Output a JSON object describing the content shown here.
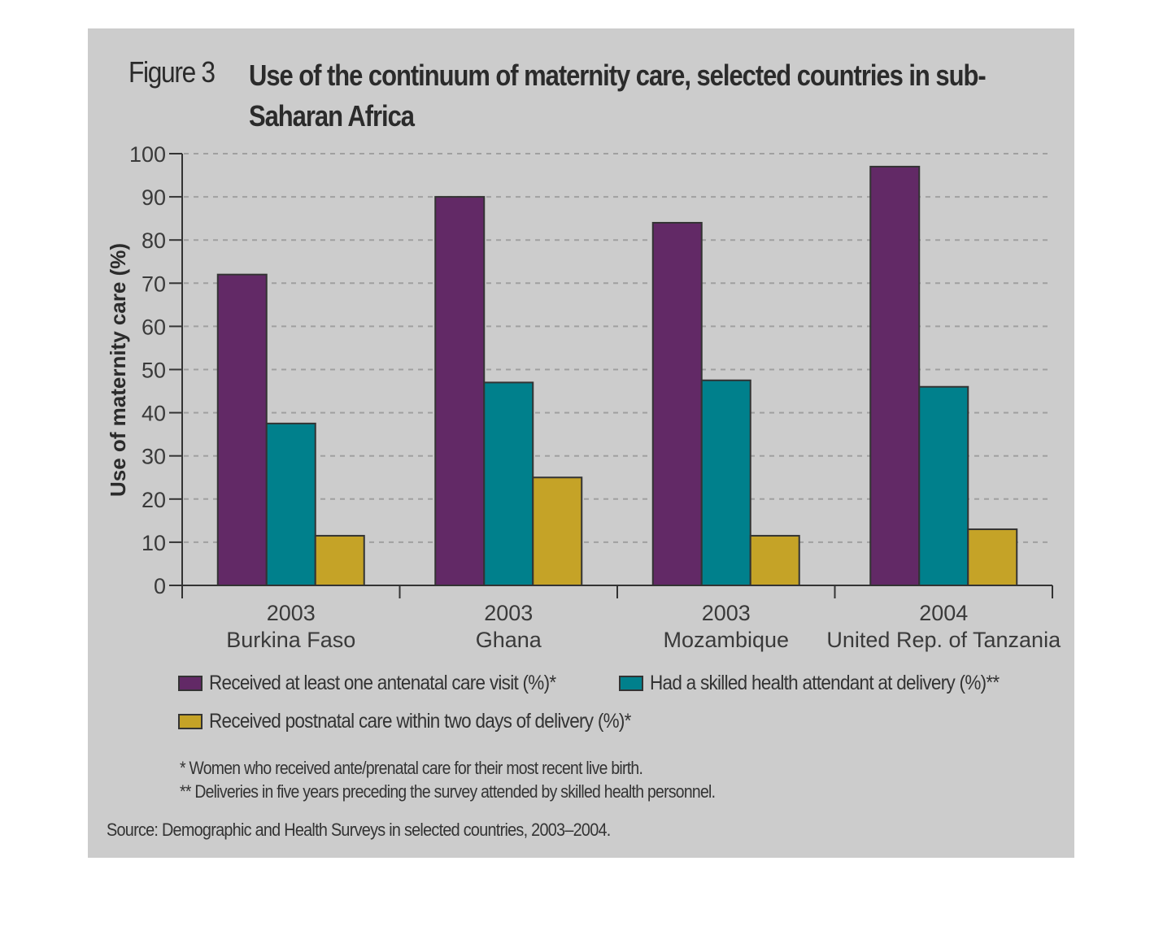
{
  "figure": {
    "number_label": "Figure 3",
    "title": "Use of the continuum of maternity care, selected countries in sub-Saharan Africa"
  },
  "notes": [
    "* Women who received ante/prenatal care for their most recent live birth.",
    "** Deliveries in five years preceding the survey attended by skilled health personnel."
  ],
  "source": "Source: Demographic and Health Surveys in selected countries, 2003–2004.",
  "chart_data": {
    "type": "bar",
    "title": "Use of the continuum of maternity care, selected countries in sub-Saharan Africa",
    "xlabel": "",
    "ylabel": "Use of maternity care (%)",
    "ylim": [
      0,
      100
    ],
    "yticks": [
      0,
      10,
      20,
      30,
      40,
      50,
      60,
      70,
      80,
      90,
      100
    ],
    "grid": true,
    "legend_position": "bottom",
    "categories": [
      {
        "year": "2003",
        "country": "Burkina Faso"
      },
      {
        "year": "2003",
        "country": "Ghana"
      },
      {
        "year": "2003",
        "country": "Mozambique"
      },
      {
        "year": "2004",
        "country": "United Rep. of Tanzania"
      }
    ],
    "series": [
      {
        "name": "Received at least one antenatal care visit (%)*",
        "color": "#622966",
        "values": [
          72,
          90,
          84,
          97
        ]
      },
      {
        "name": "Had a skilled health attendant at delivery (%)**",
        "color": "#00808c",
        "values": [
          37.5,
          47,
          47.5,
          46
        ]
      },
      {
        "name": "Received postnatal care within two days of delivery (%)*",
        "color": "#c5a327",
        "values": [
          11.5,
          25,
          11.5,
          13
        ]
      }
    ]
  }
}
